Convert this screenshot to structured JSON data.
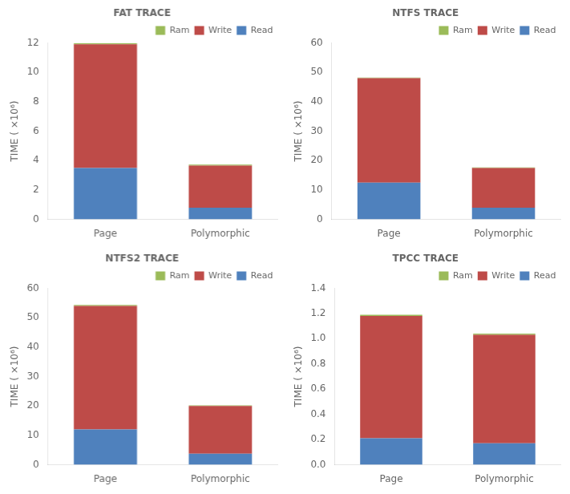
{
  "chart_data": [
    {
      "type": "bar",
      "title": "FAT TRACE",
      "stacked": true,
      "grid": false,
      "legend": "upper right",
      "ylabel": "TIME ( ×10⁶)",
      "categories": [
        "Page",
        "Polymorphic"
      ],
      "series": [
        {
          "name": "Read",
          "color": "#4f81bd",
          "values": [
            3.5,
            0.8
          ]
        },
        {
          "name": "Write",
          "color": "#be4b48",
          "values": [
            8.4,
            2.85
          ]
        },
        {
          "name": "Ram",
          "color": "#9bbb59",
          "values": [
            0.08,
            0.08
          ]
        }
      ],
      "ylim": [
        0,
        12
      ],
      "yticks": [
        0,
        2,
        4,
        6,
        8,
        10,
        12
      ]
    },
    {
      "type": "bar",
      "title": "NTFS TRACE",
      "stacked": true,
      "grid": false,
      "legend": "upper right",
      "ylabel": "TIME ( ×10⁶)",
      "categories": [
        "Page",
        "Polymorphic"
      ],
      "series": [
        {
          "name": "Read",
          "color": "#4f81bd",
          "values": [
            12.5,
            4.0
          ]
        },
        {
          "name": "Write",
          "color": "#be4b48",
          "values": [
            35.5,
            13.5
          ]
        },
        {
          "name": "Ram",
          "color": "#9bbb59",
          "values": [
            0.2,
            0.2
          ]
        }
      ],
      "ylim": [
        0,
        60
      ],
      "yticks": [
        0,
        10,
        20,
        30,
        40,
        50,
        60
      ]
    },
    {
      "type": "bar",
      "title": "NTFS2 TRACE",
      "stacked": true,
      "grid": false,
      "legend": "upper right",
      "ylabel": "TIME ( ×10⁶)",
      "categories": [
        "Page",
        "Polymorphic"
      ],
      "series": [
        {
          "name": "Read",
          "color": "#4f81bd",
          "values": [
            12.0,
            3.8
          ]
        },
        {
          "name": "Write",
          "color": "#be4b48",
          "values": [
            42.0,
            16.2
          ]
        },
        {
          "name": "Ram",
          "color": "#9bbb59",
          "values": [
            0.3,
            0.2
          ]
        }
      ],
      "ylim": [
        0,
        60
      ],
      "yticks": [
        0,
        10,
        20,
        30,
        40,
        50,
        60
      ]
    },
    {
      "type": "bar",
      "title": "TPCC TRACE",
      "stacked": true,
      "grid": false,
      "legend": "upper right",
      "ylabel": "TIME ( ×10⁶)",
      "categories": [
        "Page",
        "Polymorphic"
      ],
      "series": [
        {
          "name": "Read",
          "color": "#4f81bd",
          "values": [
            0.21,
            0.17
          ]
        },
        {
          "name": "Write",
          "color": "#be4b48",
          "values": [
            0.97,
            0.86
          ]
        },
        {
          "name": "Ram",
          "color": "#9bbb59",
          "values": [
            0.01,
            0.01
          ]
        }
      ],
      "ylim": [
        0,
        1.4
      ],
      "yticks": [
        {
          "value": 0,
          "label": "0.0"
        },
        0.2,
        0.4,
        0.6,
        0.8,
        {
          "value": 1,
          "label": "1.0"
        },
        1.2,
        1.4
      ]
    }
  ]
}
